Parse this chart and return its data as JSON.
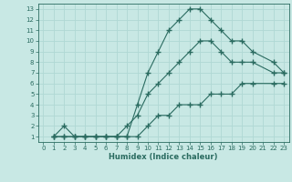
{
  "xlabel": "Humidex (Indice chaleur)",
  "bg_color": "#c8e8e4",
  "line_color": "#2a6b60",
  "grid_color": "#b0d8d4",
  "xlim": [
    -0.5,
    23.5
  ],
  "ylim": [
    0.5,
    13.5
  ],
  "xticks": [
    0,
    1,
    2,
    3,
    4,
    5,
    6,
    7,
    8,
    9,
    10,
    11,
    12,
    13,
    14,
    15,
    16,
    17,
    18,
    19,
    20,
    21,
    22,
    23
  ],
  "yticks": [
    1,
    2,
    3,
    4,
    5,
    6,
    7,
    8,
    9,
    10,
    11,
    12,
    13
  ],
  "line1_x": [
    1,
    2,
    3,
    4,
    5,
    6,
    7,
    8,
    9,
    10,
    11,
    12,
    13,
    14,
    15,
    16,
    17,
    18,
    19,
    20,
    22,
    23
  ],
  "line1_y": [
    1,
    2,
    1,
    1,
    1,
    1,
    1,
    1,
    4,
    7,
    9,
    11,
    12,
    13,
    13,
    12,
    11,
    10,
    10,
    9,
    8,
    7
  ],
  "line2_x": [
    1,
    2,
    3,
    4,
    5,
    6,
    7,
    8,
    9,
    10,
    11,
    12,
    13,
    14,
    15,
    16,
    17,
    18,
    19,
    20,
    22,
    23
  ],
  "line2_y": [
    1,
    1,
    1,
    1,
    1,
    1,
    1,
    2,
    3,
    5,
    6,
    7,
    8,
    9,
    10,
    10,
    9,
    8,
    8,
    8,
    7,
    7
  ],
  "line3_x": [
    1,
    2,
    3,
    4,
    5,
    6,
    7,
    8,
    9,
    10,
    11,
    12,
    13,
    14,
    15,
    16,
    17,
    18,
    19,
    20,
    22,
    23
  ],
  "line3_y": [
    1,
    1,
    1,
    1,
    1,
    1,
    1,
    1,
    1,
    2,
    3,
    3,
    4,
    4,
    4,
    5,
    5,
    5,
    6,
    6,
    6,
    6
  ]
}
